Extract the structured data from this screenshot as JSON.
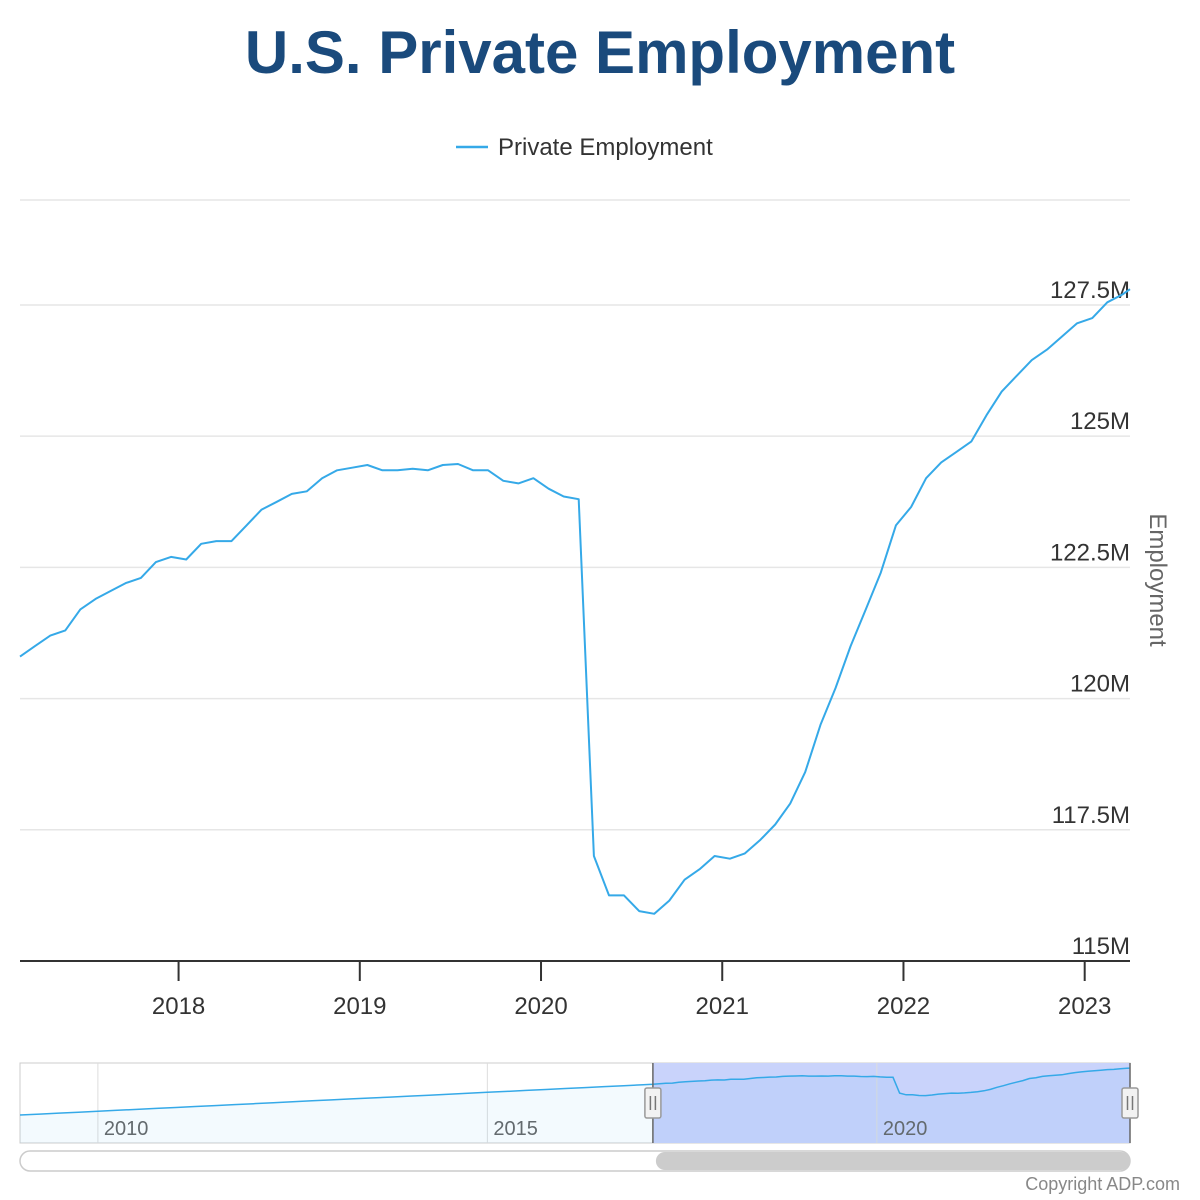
{
  "chart_data": {
    "type": "line",
    "title": "U.S. Private Employment",
    "ylabel": "Employment",
    "xlabel": "",
    "legend": "top-center",
    "grid": true,
    "ylim": [
      115,
      129.5
    ],
    "xlim": [
      2017.125,
      2023.25
    ],
    "yticks": [
      {
        "value": 115,
        "label": "115M"
      },
      {
        "value": 117.5,
        "label": "117.5M"
      },
      {
        "value": 120,
        "label": "120M"
      },
      {
        "value": 122.5,
        "label": "122.5M"
      },
      {
        "value": 125,
        "label": "125M"
      },
      {
        "value": 127.5,
        "label": "127.5M"
      }
    ],
    "xticks": [
      {
        "value": 2018,
        "label": "2018"
      },
      {
        "value": 2019,
        "label": "2019"
      },
      {
        "value": 2020,
        "label": "2020"
      },
      {
        "value": 2021,
        "label": "2021"
      },
      {
        "value": 2022,
        "label": "2022"
      },
      {
        "value": 2023,
        "label": "2023"
      }
    ],
    "series": [
      {
        "name": "Private Employment",
        "color": "#35a9e8",
        "x": [
          2017.125,
          2017.208,
          2017.292,
          2017.375,
          2017.458,
          2017.542,
          2017.625,
          2017.708,
          2017.792,
          2017.875,
          2017.958,
          2018.042,
          2018.125,
          2018.208,
          2018.292,
          2018.375,
          2018.458,
          2018.542,
          2018.625,
          2018.708,
          2018.792,
          2018.875,
          2018.958,
          2019.042,
          2019.125,
          2019.208,
          2019.292,
          2019.375,
          2019.458,
          2019.542,
          2019.625,
          2019.708,
          2019.792,
          2019.875,
          2019.958,
          2020.042,
          2020.125,
          2020.208,
          2020.292,
          2020.375,
          2020.458,
          2020.542,
          2020.625,
          2020.708,
          2020.792,
          2020.875,
          2020.958,
          2021.042,
          2021.125,
          2021.208,
          2021.292,
          2021.375,
          2021.458,
          2021.542,
          2021.625,
          2021.708,
          2021.792,
          2021.875,
          2021.958,
          2022.042,
          2022.125,
          2022.208,
          2022.292,
          2022.375,
          2022.458,
          2022.542,
          2022.625,
          2022.708,
          2022.792,
          2022.875,
          2022.958,
          2023.042,
          2023.125,
          2023.208,
          2023.25
        ],
        "values": [
          120.8,
          121.0,
          121.2,
          121.3,
          121.7,
          121.9,
          122.05,
          122.2,
          122.3,
          122.6,
          122.7,
          122.65,
          122.95,
          123.0,
          123.0,
          123.3,
          123.6,
          123.75,
          123.9,
          123.95,
          124.2,
          124.35,
          124.4,
          124.45,
          124.35,
          124.35,
          124.38,
          124.35,
          124.45,
          124.47,
          124.35,
          124.35,
          124.15,
          124.1,
          124.2,
          124.0,
          123.85,
          123.8,
          117.0,
          116.25,
          116.25,
          115.95,
          115.9,
          116.15,
          116.55,
          116.75,
          117.0,
          116.95,
          117.05,
          117.3,
          117.6,
          118.0,
          118.6,
          119.5,
          120.2,
          121.0,
          121.7,
          122.4,
          123.3,
          123.65,
          124.2,
          124.5,
          124.7,
          124.9,
          125.4,
          125.85,
          126.15,
          126.45,
          126.65,
          126.9,
          127.15,
          127.25,
          127.55,
          127.7,
          127.8
        ]
      }
    ],
    "navigator": {
      "xlim": [
        2009.0,
        2023.25
      ],
      "labels": [
        {
          "value": 2010,
          "label": "2010"
        },
        {
          "value": 2015,
          "label": "2015"
        },
        {
          "value": 2020,
          "label": "2020"
        }
      ],
      "window": [
        2017.125,
        2023.25
      ]
    },
    "credit": "Copyright ADP.com"
  }
}
